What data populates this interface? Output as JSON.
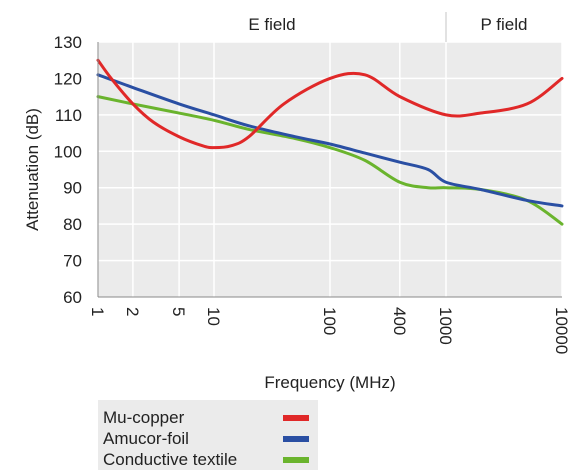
{
  "chart_data": {
    "type": "line",
    "xlabel": "Frequency (MHz)",
    "ylabel": "Attenuation (dB)",
    "x_scale": "log",
    "xlim": [
      1,
      10000
    ],
    "ylim": [
      60,
      130
    ],
    "y_ticks": [
      60,
      70,
      80,
      90,
      100,
      110,
      120,
      130
    ],
    "x_ticks": [
      1,
      2,
      5,
      10,
      100,
      400,
      1000,
      10000
    ],
    "x_tick_labels": [
      "1",
      "2",
      "5",
      "10",
      "100",
      "400",
      "1000",
      "10000"
    ],
    "grid": true,
    "legend_position": "bottom-left",
    "regions": [
      {
        "label": "E field",
        "from": 1,
        "to": 1000
      },
      {
        "label": "P field",
        "from": 1000,
        "to": 10000
      }
    ],
    "series": [
      {
        "name": "Mu-copper",
        "color": "#e02828",
        "points": [
          [
            1,
            125
          ],
          [
            1.3,
            120
          ],
          [
            2,
            113
          ],
          [
            3,
            108
          ],
          [
            5,
            104
          ],
          [
            8,
            101.5
          ],
          [
            10,
            101
          ],
          [
            14,
            101.5
          ],
          [
            20,
            104
          ],
          [
            40,
            113
          ],
          [
            100,
            120
          ],
          [
            200,
            121
          ],
          [
            400,
            115
          ],
          [
            1000,
            110
          ],
          [
            2000,
            110.5
          ],
          [
            5000,
            113
          ],
          [
            10000,
            120
          ]
        ]
      },
      {
        "name": "Amucor-foil",
        "color": "#2a4fa3",
        "points": [
          [
            1,
            121
          ],
          [
            2,
            117.5
          ],
          [
            5,
            113
          ],
          [
            10,
            110
          ],
          [
            20,
            107
          ],
          [
            50,
            104
          ],
          [
            100,
            102
          ],
          [
            200,
            99.5
          ],
          [
            400,
            97
          ],
          [
            700,
            95
          ],
          [
            1000,
            91.5
          ],
          [
            2000,
            89.5
          ],
          [
            5000,
            86.5
          ],
          [
            10000,
            85
          ]
        ]
      },
      {
        "name": "Conductive textile",
        "color": "#6ab42d",
        "points": [
          [
            1,
            115
          ],
          [
            2,
            113
          ],
          [
            5,
            110.5
          ],
          [
            10,
            108.5
          ],
          [
            20,
            106
          ],
          [
            50,
            103.5
          ],
          [
            100,
            101
          ],
          [
            200,
            97.5
          ],
          [
            400,
            91.5
          ],
          [
            700,
            90
          ],
          [
            1000,
            90
          ],
          [
            2000,
            89.5
          ],
          [
            5000,
            86.5
          ],
          [
            10000,
            80
          ]
        ]
      }
    ]
  }
}
